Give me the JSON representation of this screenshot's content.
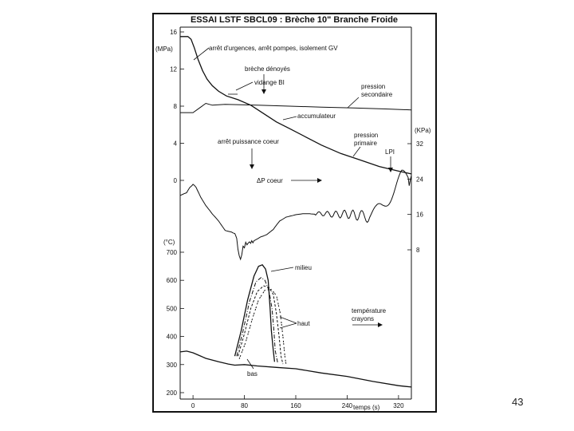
{
  "page_number": "43",
  "chart_data": {
    "type": "line",
    "title": "ESSAI LSTF SBCL09 : Brèche 10\" Branche Froide",
    "x_axis": {
      "label": "temps (s)",
      "ticks": [
        0,
        80,
        160,
        240,
        320
      ],
      "range": [
        -20,
        340
      ]
    },
    "y_axes": [
      {
        "id": "pressure",
        "unit": "(MPa)",
        "side": "left",
        "ticks": [
          0,
          4,
          8,
          12,
          16
        ],
        "range": [
          0,
          16
        ]
      },
      {
        "id": "dp",
        "unit": "(KPa)",
        "side": "right",
        "ticks": [
          8,
          16,
          24,
          32
        ],
        "range": [
          8,
          32
        ]
      },
      {
        "id": "temperature",
        "unit": "(°C)",
        "side": "left",
        "ticks": [
          200,
          300,
          400,
          500,
          600,
          700
        ],
        "range": [
          180,
          700
        ]
      }
    ],
    "annotations": [
      "arrêt d'urgences, arrêt pompes, isolement GV",
      "brèche dénoyés",
      "vidange BI",
      "pression secondaire",
      "accumulateur",
      "pression primaire",
      "LPI",
      "arrêt puissance coeur",
      "ΔP coeur",
      "milieu",
      "haut",
      "bas",
      "température crayons"
    ],
    "series": [
      {
        "axis": "pressure",
        "points": [
          [
            -20,
            15.5
          ],
          [
            -8,
            15.5
          ],
          [
            -3,
            15.2
          ],
          [
            2,
            14.3
          ],
          [
            8,
            13.0
          ],
          [
            15,
            11.8
          ],
          [
            22,
            10.9
          ],
          [
            30,
            10.2
          ],
          [
            40,
            9.6
          ],
          [
            52,
            9.1
          ],
          [
            70,
            8.7
          ],
          [
            90,
            8.1
          ],
          [
            110,
            7.2
          ],
          [
            130,
            6.3
          ],
          [
            150,
            5.6
          ],
          [
            175,
            4.7
          ],
          [
            200,
            3.8
          ],
          [
            230,
            2.9
          ],
          [
            260,
            2.2
          ],
          [
            290,
            1.5
          ],
          [
            320,
            1.0
          ],
          [
            340,
            0.7
          ]
        ]
      },
      {
        "axis": "pressure",
        "points": [
          [
            -20,
            7.3
          ],
          [
            0,
            7.3
          ],
          [
            10,
            7.8
          ],
          [
            20,
            8.3
          ],
          [
            30,
            8.1
          ],
          [
            50,
            8.2
          ],
          [
            100,
            8.1
          ],
          [
            150,
            8.0
          ],
          [
            200,
            7.9
          ],
          [
            250,
            7.8
          ],
          [
            300,
            7.7
          ],
          [
            340,
            7.6
          ]
        ]
      },
      {
        "axis": "dp",
        "points": [
          [
            -20,
            20.3
          ],
          [
            -10,
            20.8
          ],
          [
            -5,
            22.2
          ],
          [
            0,
            22.8
          ],
          [
            5,
            22.0
          ],
          [
            12,
            20.0
          ],
          [
            20,
            18.0
          ],
          [
            30,
            16.0
          ],
          [
            40,
            14.5
          ],
          [
            50,
            12.5
          ],
          [
            60,
            12.0
          ],
          [
            65,
            11.8
          ],
          [
            68,
            10.5
          ],
          [
            70,
            8.0
          ],
          [
            72,
            6.3
          ],
          [
            74,
            6.0
          ],
          [
            76,
            7.0
          ],
          [
            78,
            8.5
          ],
          [
            82,
            9.3
          ],
          [
            88,
            9.6
          ],
          [
            95,
            10.0
          ],
          [
            105,
            11.0
          ],
          [
            115,
            11.5
          ],
          [
            125,
            12.5
          ],
          [
            135,
            14.5
          ],
          [
            145,
            15.5
          ],
          [
            160,
            16.0
          ],
          [
            180,
            16.1
          ],
          [
            200,
            16.2
          ],
          [
            220,
            16.0
          ],
          [
            240,
            16.1
          ],
          [
            260,
            15.7
          ],
          [
            275,
            15.5
          ],
          [
            285,
            16.5
          ],
          [
            295,
            18.0
          ],
          [
            305,
            20.0
          ],
          [
            315,
            22.0
          ],
          [
            325,
            24.0
          ],
          [
            335,
            24.5
          ],
          [
            340,
            24.8
          ]
        ]
      },
      {
        "axis": "temperature",
        "points": [
          [
            -20,
            345
          ],
          [
            -10,
            348
          ],
          [
            0,
            342
          ],
          [
            10,
            332
          ],
          [
            20,
            322
          ],
          [
            40,
            310
          ],
          [
            55,
            302
          ],
          [
            65,
            298
          ],
          [
            80,
            300
          ],
          [
            100,
            295
          ],
          [
            130,
            290
          ],
          [
            160,
            285
          ],
          [
            200,
            270
          ],
          [
            240,
            258
          ],
          [
            280,
            240
          ],
          [
            320,
            225
          ],
          [
            340,
            220
          ]
        ]
      },
      {
        "axis": "temperature",
        "points": [
          [
            65,
            330
          ],
          [
            75,
            420
          ],
          [
            85,
            530
          ],
          [
            95,
            615
          ],
          [
            102,
            650
          ],
          [
            108,
            655
          ],
          [
            113,
            640
          ],
          [
            117,
            600
          ],
          [
            120,
            500
          ],
          [
            122,
            420
          ],
          [
            125,
            350
          ],
          [
            127,
            310
          ]
        ]
      },
      {
        "axis": "temperature",
        "points": [
          [
            68,
            330
          ],
          [
            78,
            420
          ],
          [
            88,
            525
          ],
          [
            98,
            595
          ],
          [
            106,
            610
          ],
          [
            112,
            600
          ],
          [
            118,
            565
          ],
          [
            123,
            500
          ],
          [
            126,
            420
          ],
          [
            128,
            350
          ],
          [
            132,
            305
          ]
        ]
      },
      {
        "axis": "temperature",
        "points": [
          [
            70,
            330
          ],
          [
            80,
            410
          ],
          [
            90,
            500
          ],
          [
            100,
            560
          ],
          [
            110,
            580
          ],
          [
            118,
            575
          ],
          [
            125,
            550
          ],
          [
            130,
            480
          ],
          [
            134,
            400
          ],
          [
            137,
            330
          ],
          [
            140,
            302
          ]
        ]
      },
      {
        "axis": "temperature",
        "points": [
          [
            72,
            320
          ],
          [
            82,
            380
          ],
          [
            92,
            460
          ],
          [
            102,
            530
          ],
          [
            112,
            565
          ],
          [
            122,
            568
          ],
          [
            130,
            545
          ],
          [
            136,
            480
          ],
          [
            140,
            400
          ],
          [
            143,
            330
          ],
          [
            145,
            300
          ]
        ]
      }
    ]
  }
}
